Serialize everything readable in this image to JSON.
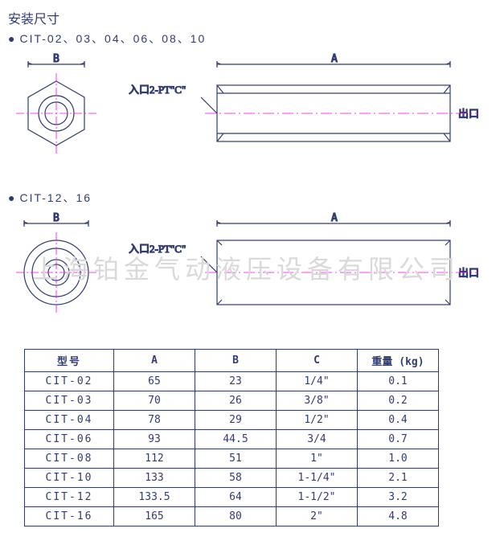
{
  "title": "安装尺寸",
  "subtitle1": "CIT-02、03、04、06、08、10",
  "subtitle2": "CIT-12、16",
  "labels": {
    "A": "A",
    "B": "B",
    "inlet": "入口2-PT\"C\"",
    "outlet": "出口"
  },
  "watermark": "上海铂金气动液压设备有限公司",
  "table": {
    "headers": [
      "型号",
      "A",
      "B",
      "C",
      "重量 (kg)"
    ],
    "rows": [
      [
        "CIT-02",
        "65",
        "23",
        "1/4\"",
        "0.1"
      ],
      [
        "CIT-03",
        "70",
        "26",
        "3/8\"",
        "0.2"
      ],
      [
        "CIT-04",
        "78",
        "29",
        "1/2\"",
        "0.4"
      ],
      [
        "CIT-06",
        "93",
        "44.5",
        "3/4",
        "0.7"
      ],
      [
        "CIT-08",
        "112",
        "51",
        "1\"",
        "1.0"
      ],
      [
        "CIT-10",
        "133",
        "58",
        "1-1/4\"",
        "2.1"
      ],
      [
        "CIT-12",
        "133.5",
        "64",
        "1-1/2\"",
        "3.2"
      ],
      [
        "CIT-16",
        "165",
        "80",
        "2\"",
        "4.8"
      ]
    ]
  },
  "style": {
    "stroke": "#313c70",
    "centerline": "#ff00ff",
    "strokeWidth": 1.2
  }
}
